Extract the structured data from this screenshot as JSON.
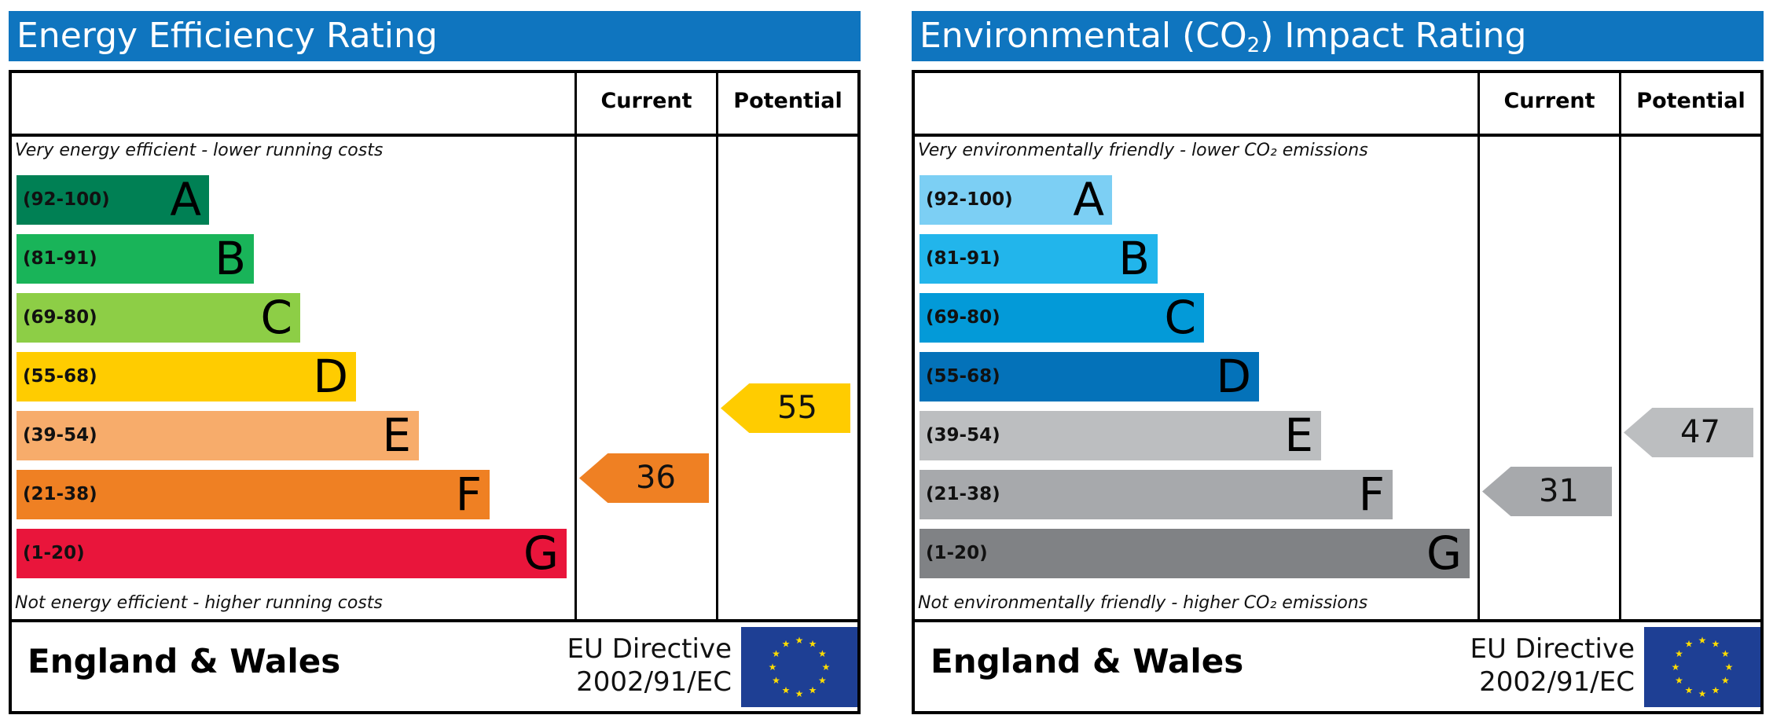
{
  "panels": [
    {
      "id": "energy",
      "title": "Energy Efficiency Rating",
      "title_sub": "",
      "title_after": "",
      "col_current": "Current",
      "col_potential": "Potential",
      "top_note": "Very energy efficient - lower running costs",
      "bottom_note": "Not energy efficient - higher running costs",
      "bands": [
        {
          "range": "(92-100)",
          "letter": "A",
          "color": "#008054"
        },
        {
          "range": "(81-91)",
          "letter": "B",
          "color": "#19b459"
        },
        {
          "range": "(69-80)",
          "letter": "C",
          "color": "#8dce46"
        },
        {
          "range": "(55-68)",
          "letter": "D",
          "color": "#ffcc00"
        },
        {
          "range": "(39-54)",
          "letter": "E",
          "color": "#f7ac6b"
        },
        {
          "range": "(21-38)",
          "letter": "F",
          "color": "#ef8023"
        },
        {
          "range": "(1-20)",
          "letter": "G",
          "color": "#e9153b"
        }
      ],
      "current": {
        "value": "36",
        "color": "#ef8023"
      },
      "potential": {
        "value": "55",
        "color": "#ffcc00"
      },
      "footer_region": "England & Wales",
      "footer_directive_1": "EU Directive",
      "footer_directive_2": "2002/91/EC"
    },
    {
      "id": "environmental",
      "title": "Environmental (CO",
      "title_sub": "2",
      "title_after": ") Impact Rating",
      "col_current": "Current",
      "col_potential": "Potential",
      "top_note": "Very environmentally friendly - lower CO₂ emissions",
      "bottom_note": "Not environmentally friendly - higher CO₂ emissions",
      "bands": [
        {
          "range": "(92-100)",
          "letter": "A",
          "color": "#7ccff4"
        },
        {
          "range": "(81-91)",
          "letter": "B",
          "color": "#22b5eb"
        },
        {
          "range": "(69-80)",
          "letter": "C",
          "color": "#039ad8"
        },
        {
          "range": "(55-68)",
          "letter": "D",
          "color": "#0472b9"
        },
        {
          "range": "(39-54)",
          "letter": "E",
          "color": "#bcbec0"
        },
        {
          "range": "(21-38)",
          "letter": "F",
          "color": "#a7a9ac"
        },
        {
          "range": "(1-20)",
          "letter": "G",
          "color": "#808285"
        }
      ],
      "current": {
        "value": "31",
        "color": "#a7a9ac"
      },
      "potential": {
        "value": "47",
        "color": "#bcbec0"
      },
      "footer_region": "England & Wales",
      "footer_directive_1": "EU Directive",
      "footer_directive_2": "2002/91/EC"
    }
  ]
}
